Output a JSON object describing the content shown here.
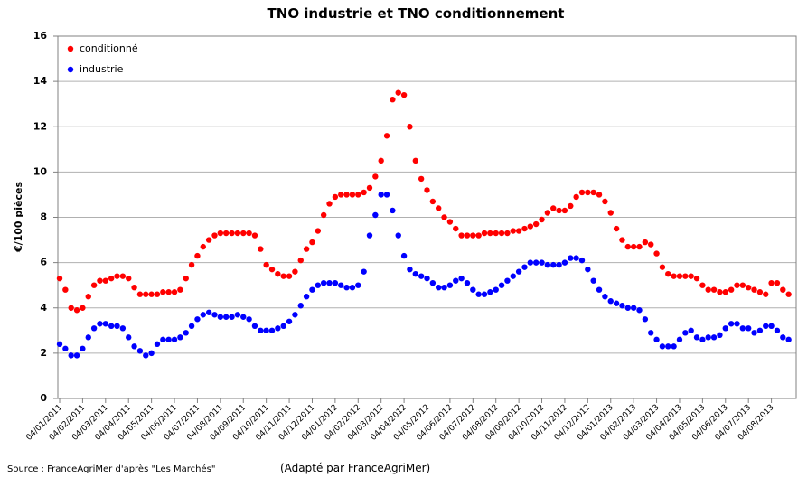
{
  "chart_data": {
    "type": "scatter",
    "title": "TNO industrie et TNO conditionnement",
    "y_label": "€/100 pièces",
    "source": "Source : FranceAgriMer d'après \"Les Marchés\"",
    "note": "(Adapté par FranceAgriMer)",
    "legend": "top-left",
    "grid": true,
    "ylim": [
      0,
      16
    ],
    "yticks": [
      0,
      2,
      4,
      6,
      8,
      10,
      12,
      14,
      16
    ],
    "categories": [
      "04/01/2011",
      null,
      null,
      null,
      "04/02/2011",
      null,
      null,
      null,
      "04/03/2011",
      null,
      null,
      null,
      "04/04/2011",
      null,
      null,
      null,
      "04/05/2011",
      null,
      null,
      null,
      "04/06/2011",
      null,
      null,
      null,
      "04/07/2011",
      null,
      null,
      null,
      "04/08/2011",
      null,
      null,
      null,
      "04/09/2011",
      null,
      null,
      null,
      "04/10/2011",
      null,
      null,
      null,
      "04/11/2011",
      null,
      null,
      null,
      "04/12/2011",
      null,
      null,
      null,
      "04/01/2012",
      null,
      null,
      null,
      "04/02/2012",
      null,
      null,
      null,
      "04/03/2012",
      null,
      null,
      null,
      "04/04/2012",
      null,
      null,
      null,
      "04/05/2012",
      null,
      null,
      null,
      "04/06/2012",
      null,
      null,
      null,
      "04/07/2012",
      null,
      null,
      null,
      "04/08/2012",
      null,
      null,
      null,
      "04/09/2012",
      null,
      null,
      null,
      "04/10/2012",
      null,
      null,
      null,
      "04/11/2012",
      null,
      null,
      null,
      "04/12/2012",
      null,
      null,
      null,
      "04/01/2013",
      null,
      null,
      null,
      "04/02/2013",
      null,
      null,
      null,
      "04/03/2013",
      null,
      null,
      null,
      "04/04/2013",
      null,
      null,
      null,
      "04/05/2013",
      null,
      null,
      null,
      "04/06/2013",
      null,
      null,
      null,
      "04/07/2013",
      null,
      null,
      null,
      "04/08/2013",
      null,
      null,
      null
    ],
    "series": [
      {
        "name": "conditionné",
        "color": "#ff0000",
        "values": [
          5.3,
          4.8,
          4.0,
          3.9,
          4.0,
          4.5,
          5.0,
          5.2,
          5.2,
          5.3,
          5.4,
          5.4,
          5.3,
          4.9,
          4.6,
          4.6,
          4.6,
          4.6,
          4.7,
          4.7,
          4.7,
          4.8,
          5.3,
          5.9,
          6.3,
          6.7,
          7.0,
          7.2,
          7.3,
          7.3,
          7.3,
          7.3,
          7.3,
          7.3,
          7.2,
          6.6,
          5.9,
          5.7,
          5.5,
          5.4,
          5.4,
          5.6,
          6.1,
          6.6,
          6.9,
          7.4,
          8.1,
          8.6,
          8.9,
          9.0,
          9.0,
          9.0,
          9.0,
          9.1,
          9.3,
          9.8,
          10.5,
          11.6,
          13.2,
          13.5,
          13.4,
          12.0,
          10.5,
          9.7,
          9.2,
          8.7,
          8.4,
          8.0,
          7.8,
          7.5,
          7.2,
          7.2,
          7.2,
          7.2,
          7.3,
          7.3,
          7.3,
          7.3,
          7.3,
          7.4,
          7.4,
          7.5,
          7.6,
          7.7,
          7.9,
          8.2,
          8.4,
          8.3,
          8.3,
          8.5,
          8.9,
          9.1,
          9.1,
          9.1,
          9.0,
          8.7,
          8.2,
          7.5,
          7.0,
          6.7,
          6.7,
          6.7,
          6.9,
          6.8,
          6.4,
          5.8,
          5.5,
          5.4,
          5.4,
          5.4,
          5.4,
          5.3,
          5.0,
          4.8,
          4.8,
          4.7,
          4.7,
          4.8,
          5.0,
          5.0,
          4.9,
          4.8,
          4.7,
          4.6,
          5.1,
          5.1,
          4.8,
          4.6
        ]
      },
      {
        "name": "industrie",
        "color": "#0000ff",
        "values": [
          2.4,
          2.2,
          1.9,
          1.9,
          2.2,
          2.7,
          3.1,
          3.3,
          3.3,
          3.2,
          3.2,
          3.1,
          2.7,
          2.3,
          2.1,
          1.9,
          2.0,
          2.4,
          2.6,
          2.6,
          2.6,
          2.7,
          2.9,
          3.2,
          3.5,
          3.7,
          3.8,
          3.7,
          3.6,
          3.6,
          3.6,
          3.7,
          3.6,
          3.5,
          3.2,
          3.0,
          3.0,
          3.0,
          3.1,
          3.2,
          3.4,
          3.7,
          4.1,
          4.5,
          4.8,
          5.0,
          5.1,
          5.1,
          5.1,
          5.0,
          4.9,
          4.9,
          5.0,
          5.6,
          7.2,
          8.1,
          9.0,
          9.0,
          8.3,
          7.2,
          6.3,
          5.7,
          5.5,
          5.4,
          5.3,
          5.1,
          4.9,
          4.9,
          5.0,
          5.2,
          5.3,
          5.1,
          4.8,
          4.6,
          4.6,
          4.7,
          4.8,
          5.0,
          5.2,
          5.4,
          5.6,
          5.8,
          6.0,
          6.0,
          6.0,
          5.9,
          5.9,
          5.9,
          6.0,
          6.2,
          6.2,
          6.1,
          5.7,
          5.2,
          4.8,
          4.5,
          4.3,
          4.2,
          4.1,
          4.0,
          4.0,
          3.9,
          3.5,
          2.9,
          2.6,
          2.3,
          2.3,
          2.3,
          2.6,
          2.9,
          3.0,
          2.7,
          2.6,
          2.7,
          2.7,
          2.8,
          3.1,
          3.3,
          3.3,
          3.1,
          3.1,
          2.9,
          3.0,
          3.2,
          3.2,
          3.0,
          2.7,
          2.6
        ]
      }
    ]
  }
}
